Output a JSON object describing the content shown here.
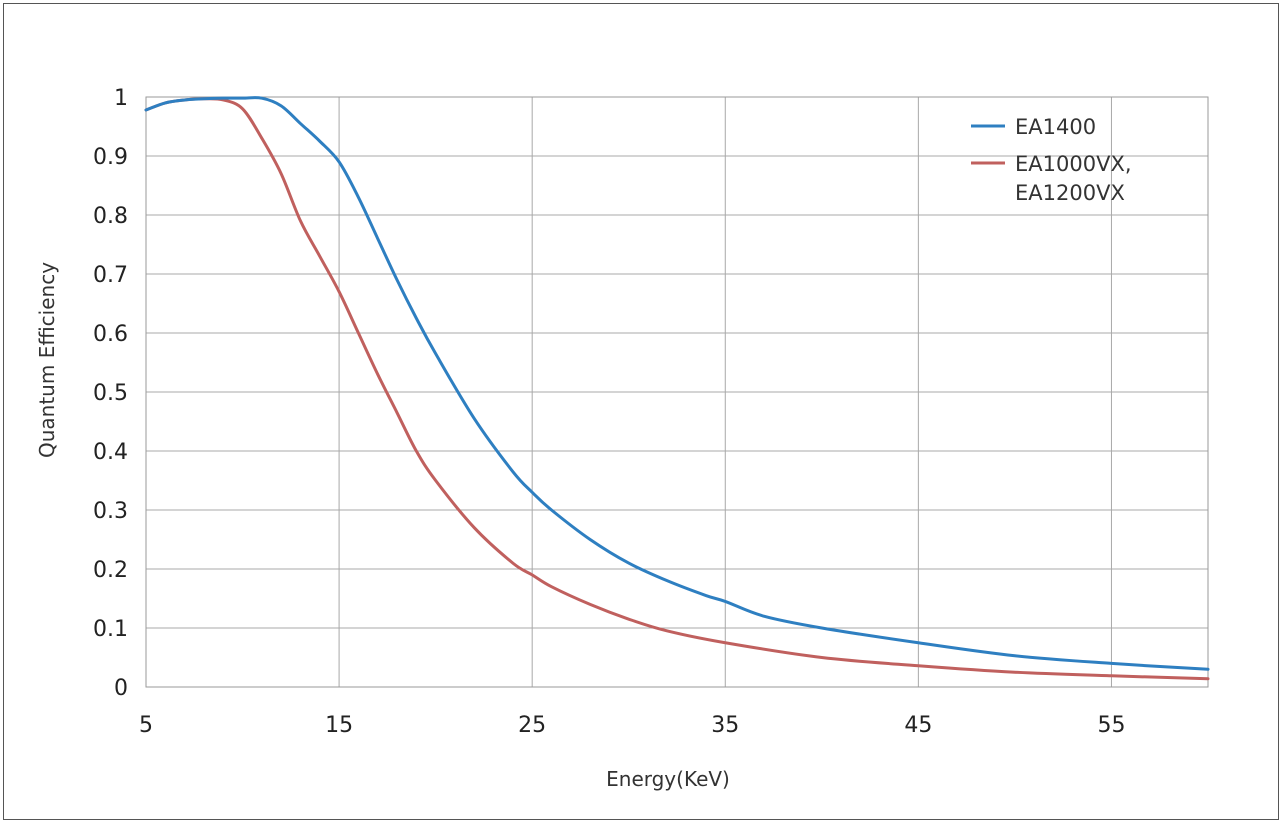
{
  "chart_data": {
    "type": "line",
    "title": "",
    "xlabel": "Energy(KeV)",
    "ylabel": "Quantum Efficiency",
    "xlim": [
      5,
      60
    ],
    "ylim": [
      0,
      1
    ],
    "xticks": [
      5,
      15,
      25,
      35,
      45,
      55
    ],
    "yticks": [
      0,
      0.1,
      0.2,
      0.3,
      0.4,
      0.5,
      0.6,
      0.7,
      0.8,
      0.9,
      1
    ],
    "ytick_labels": [
      "0",
      "0.1",
      "0.2",
      "0.3",
      "0.4",
      "0.5",
      "0.6",
      "0.7",
      "0.8",
      "0.9",
      "1"
    ],
    "grid": true,
    "legend_position": "top-right",
    "series": [
      {
        "name": "EA1400",
        "color": "#2e7fc1",
        "x": [
          5,
          6,
          7,
          8,
          9,
          10,
          11,
          12,
          13,
          14,
          15,
          16,
          17,
          18,
          19,
          20,
          22,
          24,
          25,
          26,
          28,
          30,
          32,
          34,
          35,
          37,
          40,
          45,
          50,
          55,
          60
        ],
        "y": [
          0.978,
          0.99,
          0.995,
          0.997,
          0.998,
          0.998,
          0.998,
          0.985,
          0.955,
          0.925,
          0.89,
          0.83,
          0.76,
          0.69,
          0.625,
          0.565,
          0.455,
          0.365,
          0.33,
          0.3,
          0.25,
          0.21,
          0.18,
          0.155,
          0.145,
          0.12,
          0.1,
          0.075,
          0.053,
          0.04,
          0.03
        ]
      },
      {
        "name": "EA1000VX, EA1200VX",
        "legend_lines": [
          "EA1000VX,",
          "EA1200VX"
        ],
        "color": "#c0605e",
        "x": [
          5,
          6,
          7,
          8,
          9,
          10,
          11,
          12,
          13,
          14,
          15,
          16,
          17,
          18,
          19,
          20,
          22,
          24,
          25,
          26,
          28,
          30,
          32,
          35,
          40,
          45,
          50,
          55,
          60
        ],
        "y": [
          0.978,
          0.99,
          0.995,
          0.997,
          0.995,
          0.98,
          0.93,
          0.87,
          0.79,
          0.73,
          0.67,
          0.6,
          0.53,
          0.465,
          0.4,
          0.35,
          0.27,
          0.21,
          0.19,
          0.17,
          0.14,
          0.115,
          0.095,
          0.075,
          0.05,
          0.036,
          0.025,
          0.019,
          0.014
        ]
      }
    ]
  }
}
